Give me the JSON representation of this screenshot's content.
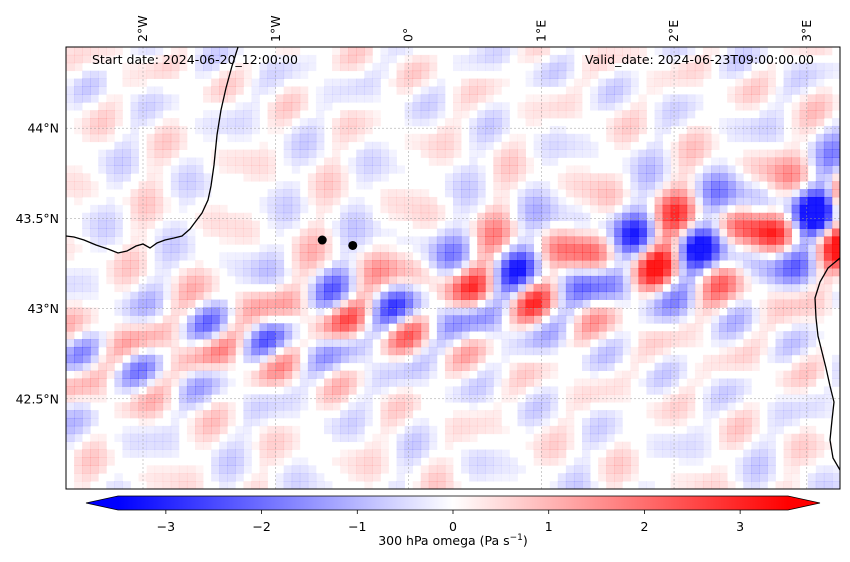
{
  "map": {
    "start_date": "Start date: 2024-06-20_12:00:00",
    "valid_date": "Valid_date: 2024-06-23T09:00:00.00",
    "lon_labels": [
      "2°W",
      "1°W",
      "0°",
      "1°E",
      "2°E",
      "3°E"
    ],
    "lat_labels": [
      "44°N",
      "43.5°N",
      "43°N",
      "42.5°N"
    ],
    "extent": {
      "lon_min": -2.58,
      "lon_max": 3.25,
      "lat_min": 42.0,
      "lat_max": 44.45
    },
    "markers": [
      {
        "name": "point-1",
        "lon": -0.65,
        "lat": 43.38
      },
      {
        "name": "point-2",
        "lon": -0.42,
        "lat": 43.35
      }
    ]
  },
  "colorbar": {
    "label": "300 hPa omega (Pa s",
    "label_sup": "−1",
    "label_close": ")",
    "ticks": [
      "−3",
      "−2",
      "−1",
      "0",
      "1",
      "2",
      "3"
    ],
    "tick_values": [
      -3,
      -2,
      -1,
      0,
      1,
      2,
      3
    ],
    "vmin": -3.5,
    "vmax": 3.5,
    "colors": {
      "negative": "#0000ff",
      "mid": "#ffffff",
      "positive": "#ff0000"
    }
  }
}
